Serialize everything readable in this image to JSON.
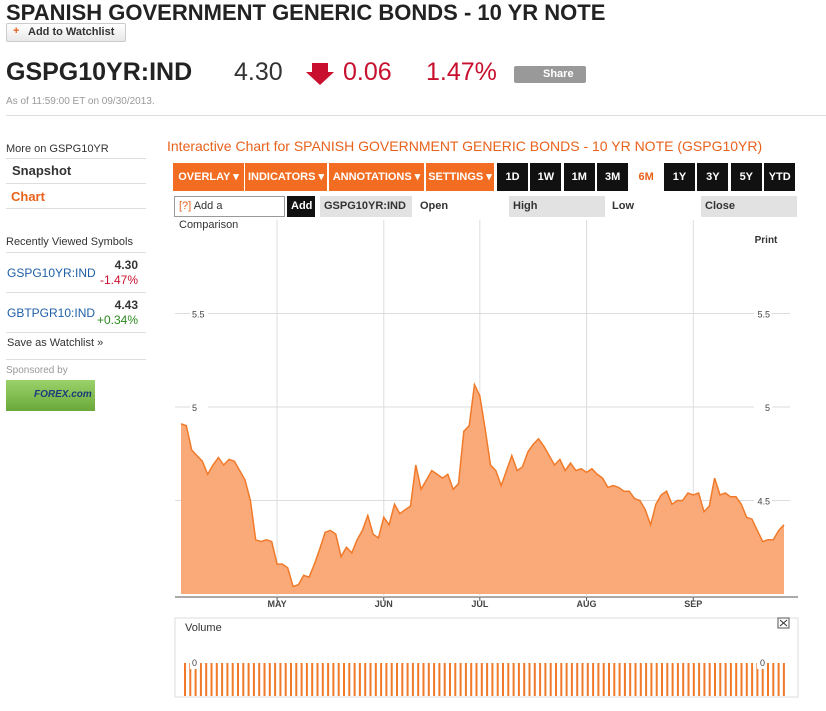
{
  "header": {
    "title": "SPANISH GOVERNMENT GENERIC BONDS - 10 YR NOTE",
    "watchlist_icon": "+",
    "watchlist_button": "Add to Watchlist",
    "symbol": "GSPG10YR:IND",
    "price": "4.30",
    "change": "0.06",
    "change_pct": "1.47%",
    "share": "Share",
    "timestamp": "As of 11:59:00 ET on 09/30/2013."
  },
  "sidebar": {
    "more_on": "More on GSPG10YR",
    "links": [
      "Snapshot",
      "Chart"
    ],
    "recent_title": "Recently Viewed Symbols",
    "recent": [
      {
        "symbol": "GSPG10YR:IND",
        "price": "4.30",
        "change": "-1.47%"
      },
      {
        "symbol": "GBTPGR10:IND",
        "price": "4.43",
        "change": "+0.34%"
      }
    ],
    "save": "Save as Watchlist »",
    "sponsored": "Sponsored by",
    "sponsor": "FOREX.com"
  },
  "toolbar": {
    "menus": [
      "OVERLAY ▾",
      "INDICATORS ▾",
      "ANNOTATIONS ▾",
      "SETTINGS ▾"
    ],
    "ranges": [
      "1D",
      "1W",
      "1M",
      "3M",
      "6M",
      "1Y",
      "3Y",
      "5Y",
      "YTD"
    ],
    "active_range": 4,
    "help": "[?]",
    "compare_placeholder": "Add a Comparison",
    "add": "Add",
    "fields": [
      "GSPG10YR:IND",
      "Open",
      "High",
      "Low",
      "Close"
    ]
  },
  "print": "Print",
  "volume": {
    "label": "Volume",
    "yticks": [
      0
    ]
  },
  "chart_data": {
    "type": "area",
    "title": "Interactive Chart for SPANISH GOVERNMENT GENERIC BONDS - 10 YR NOTE (GSPG10YR)",
    "color": "#f07a2a",
    "fill": "#f9aa78",
    "grid": true,
    "categories": [
      null,
      null,
      null,
      null,
      null,
      null,
      null,
      null,
      null,
      null,
      null,
      null,
      null,
      null,
      null,
      null,
      null,
      null,
      "MAY",
      null,
      null,
      null,
      null,
      null,
      null,
      null,
      null,
      null,
      null,
      null,
      null,
      null,
      null,
      null,
      null,
      null,
      null,
      null,
      "JUN",
      null,
      null,
      null,
      null,
      null,
      null,
      null,
      null,
      null,
      null,
      null,
      null,
      null,
      null,
      null,
      null,
      null,
      "JUL",
      null,
      null,
      null,
      null,
      null,
      null,
      null,
      null,
      null,
      null,
      null,
      null,
      null,
      null,
      null,
      null,
      null,
      null,
      null,
      "AUG",
      null,
      null,
      null,
      null,
      null,
      null,
      null,
      null,
      null,
      null,
      null,
      null,
      null,
      null,
      null,
      null,
      null,
      null,
      null,
      "SEP",
      null,
      null,
      null,
      null,
      null,
      null,
      null,
      null,
      null,
      null,
      null,
      null,
      null,
      null,
      null,
      null,
      null
    ],
    "values": [
      4.91,
      4.9,
      4.77,
      4.74,
      4.71,
      4.64,
      4.69,
      4.73,
      4.69,
      4.72,
      4.71,
      4.66,
      4.61,
      4.5,
      4.29,
      4.28,
      4.29,
      4.28,
      4.16,
      4.16,
      4.14,
      4.04,
      4.05,
      4.1,
      4.09,
      4.16,
      4.24,
      4.33,
      4.34,
      4.32,
      4.2,
      4.25,
      4.22,
      4.29,
      4.34,
      4.42,
      4.32,
      4.3,
      4.41,
      4.37,
      4.48,
      4.43,
      4.45,
      4.47,
      4.69,
      4.56,
      4.61,
      4.66,
      4.64,
      4.62,
      4.64,
      4.56,
      4.59,
      4.87,
      4.9,
      5.12,
      5.06,
      4.88,
      4.69,
      4.66,
      4.58,
      4.66,
      4.74,
      4.66,
      4.68,
      4.76,
      4.8,
      4.83,
      4.79,
      4.74,
      4.69,
      4.72,
      4.66,
      4.7,
      4.66,
      4.67,
      4.65,
      4.67,
      4.64,
      4.62,
      4.57,
      4.58,
      4.57,
      4.55,
      4.55,
      4.51,
      4.5,
      4.45,
      4.37,
      4.48,
      4.53,
      4.55,
      4.48,
      4.5,
      4.5,
      4.54,
      4.53,
      4.54,
      4.44,
      4.47,
      4.62,
      4.53,
      4.54,
      4.52,
      4.52,
      4.48,
      4.41,
      4.4,
      4.34,
      4.28,
      4.29,
      4.29,
      4.34,
      4.37
    ],
    "ylim": [
      4,
      6
    ],
    "yticks": [
      4.5,
      5,
      5.5
    ]
  }
}
